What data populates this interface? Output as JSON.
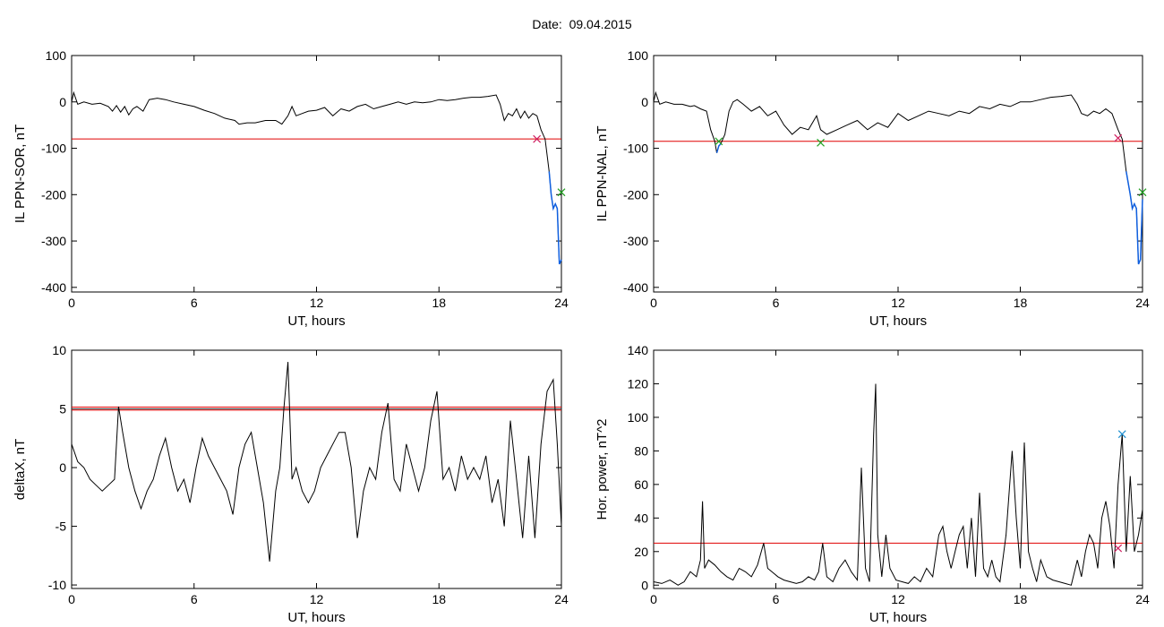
{
  "header": {
    "date_label": "Date:  09.04.2015"
  },
  "colors": {
    "trace": "#000000",
    "threshold": "#e00000",
    "highlight": "#1060e0",
    "marker_red": "#d02060",
    "marker_green": "#20a020",
    "marker_blue": "#2090d0"
  },
  "chart_data": [
    {
      "type": "line",
      "id": "ppn-sor",
      "xlabel": "UT, hours",
      "ylabel": "IL PPN-SOR, nT",
      "xlim": [
        0,
        24
      ],
      "ylim": [
        -410,
        100
      ],
      "xticks": [
        0,
        6,
        12,
        18,
        24
      ],
      "yticks": [
        100,
        0,
        -100,
        -200,
        -300,
        -400
      ],
      "series": [
        {
          "x": [
            0,
            0.1,
            0.3,
            0.6,
            1,
            1.4,
            1.8,
            2.0,
            2.2,
            2.4,
            2.6,
            2.8,
            3.0,
            3.2,
            3.5,
            3.8,
            4.2,
            4.6,
            5,
            5.5,
            6,
            6.5,
            7,
            7.5,
            8,
            8.2,
            8.6,
            9,
            9.5,
            10,
            10.3,
            10.6,
            10.8,
            11,
            11.3,
            11.6,
            12,
            12.4,
            12.8,
            13.2,
            13.6,
            14,
            14.4,
            14.8,
            15.2,
            15.6,
            16,
            16.4,
            16.8,
            17.2,
            17.6,
            18,
            18.4,
            18.8,
            19.2,
            19.6,
            20,
            20.4,
            20.8,
            21,
            21.2,
            21.4,
            21.6,
            21.8,
            22,
            22.2,
            22.4,
            22.6,
            22.8,
            23,
            23.2,
            23.4,
            23.5,
            23.6,
            23.7,
            23.8,
            23.9,
            24
          ],
          "y": [
            0,
            20,
            -5,
            0,
            -5,
            -3,
            -10,
            -20,
            -8,
            -22,
            -10,
            -28,
            -15,
            -10,
            -20,
            5,
            8,
            5,
            0,
            -5,
            -10,
            -18,
            -25,
            -35,
            -40,
            -48,
            -45,
            -45,
            -40,
            -40,
            -48,
            -30,
            -10,
            -30,
            -25,
            -20,
            -18,
            -12,
            -30,
            -15,
            -20,
            -10,
            -5,
            -15,
            -10,
            -5,
            0,
            -5,
            0,
            -2,
            0,
            5,
            3,
            5,
            8,
            10,
            10,
            12,
            15,
            -5,
            -40,
            -25,
            -30,
            -15,
            -35,
            -20,
            -35,
            -25,
            -30,
            -60,
            -80,
            -150,
            -200,
            -230,
            -220,
            -230,
            -350,
            -340
          ]
        }
      ],
      "threshold": -80,
      "markers": [
        {
          "x": 22.8,
          "y": -80,
          "color": "red"
        },
        {
          "x": 24,
          "y": -195,
          "color": "green"
        }
      ]
    },
    {
      "type": "line",
      "id": "ppn-nal",
      "xlabel": "UT, hours",
      "ylabel": "IL PPN-NAL, nT",
      "xlim": [
        0,
        24
      ],
      "ylim": [
        -410,
        100
      ],
      "xticks": [
        0,
        6,
        12,
        18,
        24
      ],
      "yticks": [
        100,
        0,
        -100,
        -200,
        -300,
        -400
      ],
      "series": [
        {
          "x": [
            0,
            0.1,
            0.3,
            0.6,
            1,
            1.4,
            1.8,
            2.0,
            2.3,
            2.6,
            2.8,
            3.0,
            3.1,
            3.2,
            3.3,
            3.5,
            3.7,
            3.9,
            4.1,
            4.4,
            4.8,
            5.2,
            5.6,
            6,
            6.4,
            6.8,
            7.2,
            7.6,
            8,
            8.2,
            8.5,
            9,
            9.5,
            10,
            10.5,
            11,
            11.5,
            12,
            12.5,
            13,
            13.5,
            14,
            14.5,
            15,
            15.5,
            16,
            16.5,
            17,
            17.5,
            18,
            18.5,
            19,
            19.5,
            20,
            20.5,
            20.8,
            21,
            21.3,
            21.6,
            21.9,
            22.2,
            22.5,
            22.8,
            23,
            23.2,
            23.4,
            23.5,
            23.6,
            23.7,
            23.8,
            23.9,
            24
          ],
          "y": [
            0,
            20,
            -5,
            0,
            -5,
            -5,
            -10,
            -8,
            -15,
            -20,
            -60,
            -85,
            -110,
            -95,
            -90,
            -70,
            -20,
            0,
            5,
            -5,
            -20,
            -10,
            -30,
            -20,
            -50,
            -70,
            -55,
            -60,
            -30,
            -60,
            -70,
            -60,
            -50,
            -40,
            -60,
            -45,
            -55,
            -25,
            -40,
            -30,
            -20,
            -25,
            -30,
            -20,
            -25,
            -10,
            -15,
            -5,
            -10,
            0,
            0,
            5,
            10,
            12,
            15,
            -5,
            -25,
            -30,
            -20,
            -25,
            -15,
            -25,
            -60,
            -80,
            -150,
            -200,
            -230,
            -220,
            -230,
            -350,
            -340,
            -210
          ]
        }
      ],
      "threshold": -85,
      "markers": [
        {
          "x": 3.2,
          "y": -85,
          "color": "green"
        },
        {
          "x": 8.2,
          "y": -88,
          "color": "green"
        },
        {
          "x": 22.8,
          "y": -78,
          "color": "red"
        },
        {
          "x": 24,
          "y": -195,
          "color": "green"
        }
      ]
    },
    {
      "type": "line",
      "id": "deltax",
      "xlabel": "UT, hours",
      "ylabel": "deltaX, nT",
      "xlim": [
        0,
        24
      ],
      "ylim": [
        -10.3,
        10
      ],
      "xticks": [
        0,
        6,
        12,
        18,
        24
      ],
      "yticks": [
        10,
        5,
        0,
        -5,
        -10
      ],
      "series": [
        {
          "x": [
            0,
            0.3,
            0.6,
            0.9,
            1.2,
            1.5,
            1.8,
            2.1,
            2.3,
            2.5,
            2.8,
            3.1,
            3.4,
            3.7,
            4.0,
            4.3,
            4.6,
            4.9,
            5.2,
            5.5,
            5.8,
            6.1,
            6.4,
            6.7,
            7.0,
            7.3,
            7.6,
            7.9,
            8.2,
            8.5,
            8.8,
            9.1,
            9.4,
            9.7,
            10.0,
            10.2,
            10.4,
            10.6,
            10.8,
            11.0,
            11.3,
            11.6,
            11.9,
            12.2,
            12.5,
            12.8,
            13.1,
            13.4,
            13.7,
            14.0,
            14.3,
            14.6,
            14.9,
            15.2,
            15.5,
            15.8,
            16.1,
            16.4,
            16.7,
            17.0,
            17.3,
            17.6,
            17.9,
            18.2,
            18.5,
            18.8,
            19.1,
            19.4,
            19.7,
            20.0,
            20.3,
            20.6,
            20.9,
            21.2,
            21.5,
            21.8,
            22.1,
            22.4,
            22.7,
            23.0,
            23.3,
            23.6,
            23.8,
            24
          ],
          "y": [
            2,
            0.5,
            0,
            -1,
            -1.5,
            -2,
            -1.5,
            -1,
            5.2,
            3,
            0,
            -2,
            -3.5,
            -2,
            -1,
            1,
            2.5,
            0,
            -2,
            -1,
            -3,
            0,
            2.5,
            1,
            0,
            -1,
            -2,
            -4,
            0,
            2,
            3,
            0,
            -3,
            -8,
            -2,
            0,
            5,
            9,
            -1,
            0,
            -2,
            -3,
            -2,
            0,
            1,
            2,
            3,
            3,
            0,
            -6,
            -2,
            0,
            -1,
            3,
            5.5,
            -1,
            -2,
            2,
            0,
            -2,
            0,
            4,
            6.5,
            -1,
            0,
            -2,
            1,
            -1,
            0,
            -1,
            1,
            -3,
            -1,
            -5,
            4,
            -1,
            -6,
            1,
            -6,
            2,
            6.5,
            7.5,
            2,
            -5
          ]
        }
      ],
      "threshold": 5,
      "threshold_band": [
        4.9,
        5.15
      ],
      "markers": []
    },
    {
      "type": "line",
      "id": "hor-power",
      "xlabel": "UT, hours",
      "ylabel": "Hor. power, nT^2",
      "xlim": [
        0,
        24
      ],
      "ylim": [
        -2,
        140
      ],
      "xticks": [
        0,
        6,
        12,
        18,
        24
      ],
      "yticks": [
        140,
        120,
        100,
        80,
        60,
        40,
        20,
        0
      ],
      "series": [
        {
          "x": [
            0,
            0.4,
            0.8,
            1.2,
            1.5,
            1.8,
            2.1,
            2.3,
            2.4,
            2.5,
            2.7,
            3.0,
            3.3,
            3.6,
            3.9,
            4.2,
            4.5,
            4.8,
            5.1,
            5.4,
            5.6,
            5.8,
            6.1,
            6.4,
            6.7,
            7.0,
            7.3,
            7.6,
            7.9,
            8.1,
            8.3,
            8.5,
            8.8,
            9.1,
            9.4,
            9.7,
            10.0,
            10.2,
            10.4,
            10.6,
            10.8,
            10.9,
            11.0,
            11.2,
            11.4,
            11.6,
            11.9,
            12.2,
            12.5,
            12.8,
            13.1,
            13.4,
            13.7,
            14.0,
            14.2,
            14.4,
            14.6,
            14.8,
            15.0,
            15.2,
            15.4,
            15.6,
            15.8,
            16.0,
            16.2,
            16.4,
            16.6,
            16.8,
            17.0,
            17.3,
            17.6,
            17.8,
            18.0,
            18.2,
            18.4,
            18.6,
            18.8,
            19.0,
            19.3,
            19.6,
            19.9,
            20.2,
            20.5,
            20.8,
            21.0,
            21.2,
            21.4,
            21.6,
            21.8,
            22.0,
            22.2,
            22.4,
            22.6,
            22.8,
            23.0,
            23.2,
            23.4,
            23.6,
            23.8,
            24
          ],
          "y": [
            2,
            1,
            3,
            0,
            2,
            8,
            5,
            15,
            50,
            10,
            15,
            12,
            8,
            5,
            3,
            10,
            8,
            5,
            12,
            25,
            10,
            8,
            5,
            3,
            2,
            1,
            2,
            5,
            3,
            8,
            25,
            5,
            2,
            10,
            15,
            8,
            3,
            70,
            10,
            2,
            90,
            120,
            30,
            5,
            30,
            10,
            3,
            2,
            1,
            5,
            2,
            10,
            5,
            30,
            35,
            20,
            10,
            20,
            30,
            35,
            10,
            40,
            5,
            55,
            10,
            5,
            15,
            5,
            2,
            30,
            80,
            40,
            10,
            85,
            20,
            10,
            2,
            15,
            5,
            3,
            2,
            1,
            0,
            15,
            5,
            20,
            30,
            25,
            10,
            40,
            50,
            35,
            10,
            60,
            90,
            20,
            65,
            20,
            30,
            45
          ]
        }
      ],
      "threshold": 25,
      "markers": [
        {
          "x": 23.0,
          "y": 90,
          "color": "blue"
        },
        {
          "x": 22.8,
          "y": 22,
          "color": "red"
        }
      ]
    }
  ]
}
